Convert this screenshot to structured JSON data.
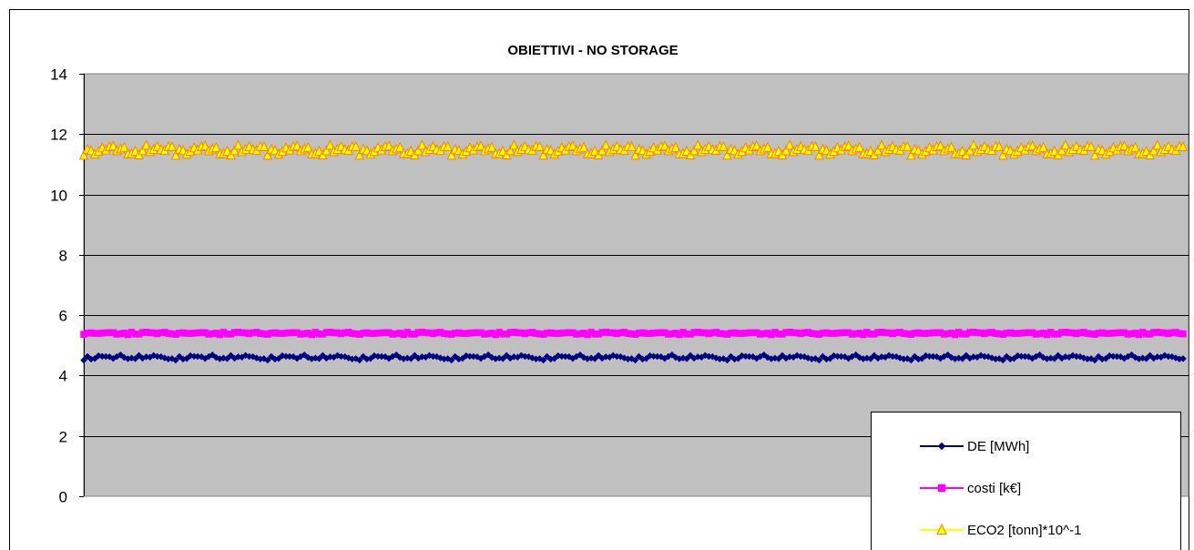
{
  "chart_data": {
    "type": "line",
    "title": "OBIETTIVI  -  NO STORAGE",
    "xlabel": "",
    "ylabel": "",
    "ylim": [
      0,
      14
    ],
    "yticks": [
      "0",
      "2",
      "4",
      "6",
      "8",
      "10",
      "12",
      "14"
    ],
    "grid": true,
    "plot_background": "#c0c0c0",
    "legend_position": "bottom-right",
    "n_points": 300,
    "series": [
      {
        "name": "DE  [MWh]",
        "color": "#000080",
        "marker": "diamond",
        "base": 4.6,
        "amplitude": 0.1,
        "pattern": [
          -0.9,
          0.2,
          -0.4,
          0.8,
          -0.2,
          0.5,
          -0.7,
          0.1,
          0.9,
          -0.3,
          0.4,
          -0.8,
          0.0,
          0.6,
          -0.5,
          0.3,
          -0.1,
          0.7,
          -0.6,
          0.2,
          1.0,
          -0.4,
          0.1,
          -0.9,
          0.5
        ]
      },
      {
        "name": "costi  [k€]",
        "color": "#ff00ff",
        "marker": "square",
        "base": 5.4,
        "amplitude": 0.05,
        "pattern": [
          0.6,
          -0.4,
          0.2,
          -0.8,
          0.5,
          0.0,
          -0.3,
          0.9,
          -0.6,
          0.3,
          -0.1,
          0.7,
          -0.9,
          0.4,
          -0.2,
          0.8,
          -0.5,
          0.1,
          -0.7,
          0.6,
          0.2,
          -0.4,
          1.0,
          -0.3,
          0.0
        ]
      },
      {
        "name": "ECO2 [tonn]*10^-1",
        "color": "#ffff00",
        "marker": "triangle",
        "marker_edge_color": "#ff8000",
        "base": 11.45,
        "amplitude": 0.2,
        "pattern": [
          1.0,
          0.3,
          -0.6,
          0.5,
          -0.2,
          0.8,
          -0.9,
          0.1,
          0.6,
          -0.4,
          0.2,
          -0.7,
          0.9,
          -0.1,
          0.4,
          -0.8,
          0.3,
          0.7,
          -0.5,
          0.0,
          -0.3,
          0.5,
          -0.9,
          0.2,
          0.6
        ]
      }
    ]
  }
}
